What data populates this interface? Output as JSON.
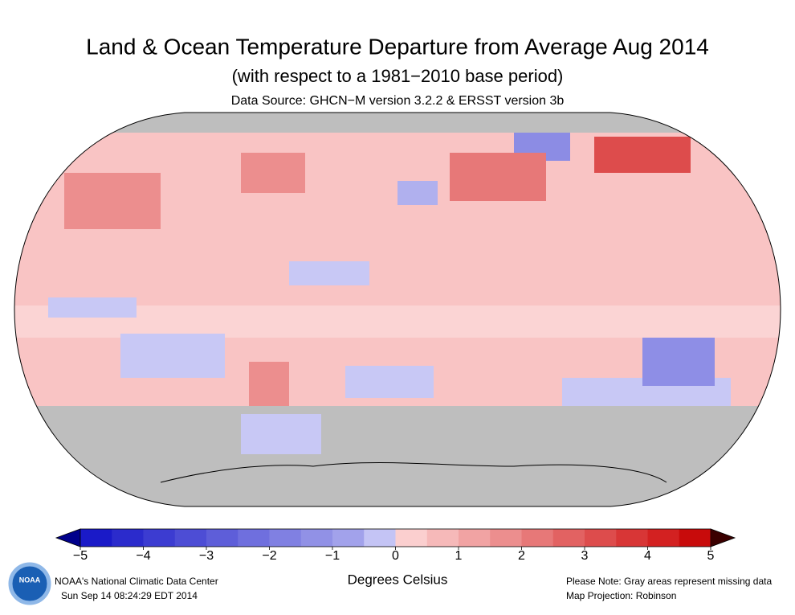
{
  "header": {
    "title": "Land & Ocean Temperature Departure from Average Aug 2014",
    "subtitle": "(with respect to a 1981−2010 base period)",
    "source": "Data Source: GHCN−M version 3.2.2 & ERSST version 3b"
  },
  "colorbar": {
    "lim": [
      -5,
      5
    ],
    "ticks": [
      {
        "value": -5,
        "label": "−5"
      },
      {
        "value": -4,
        "label": "−4"
      },
      {
        "value": -3,
        "label": "−3"
      },
      {
        "value": -2,
        "label": "−2"
      },
      {
        "value": -1,
        "label": "−1"
      },
      0,
      1,
      2,
      3,
      4,
      5
    ],
    "colors": [
      "#1a1ac8",
      "#2b2bcc",
      "#3c3cd1",
      "#4d4dd5",
      "#5e5ed9",
      "#6f6fde",
      "#8080e2",
      "#9191e6",
      "#a2a2eb",
      "#c4c4f5",
      "#fbcfcf",
      "#f6b9b9",
      "#f1a3a3",
      "#ec8e8e",
      "#e77878",
      "#e26262",
      "#dd4c4c",
      "#d83636",
      "#d32121",
      "#c80b0b"
    ],
    "under_color": "#00008b",
    "over_color": "#3b0000",
    "label": "Degrees Celsius"
  },
  "footer": {
    "logo": "NOAA",
    "center": "NOAA's National Climatic Data Center",
    "date": "Sun Sep 14 08:24:29 EDT 2014",
    "note": "Please Note: Gray areas represent missing data",
    "projection": "Map Projection: Robinson"
  }
}
